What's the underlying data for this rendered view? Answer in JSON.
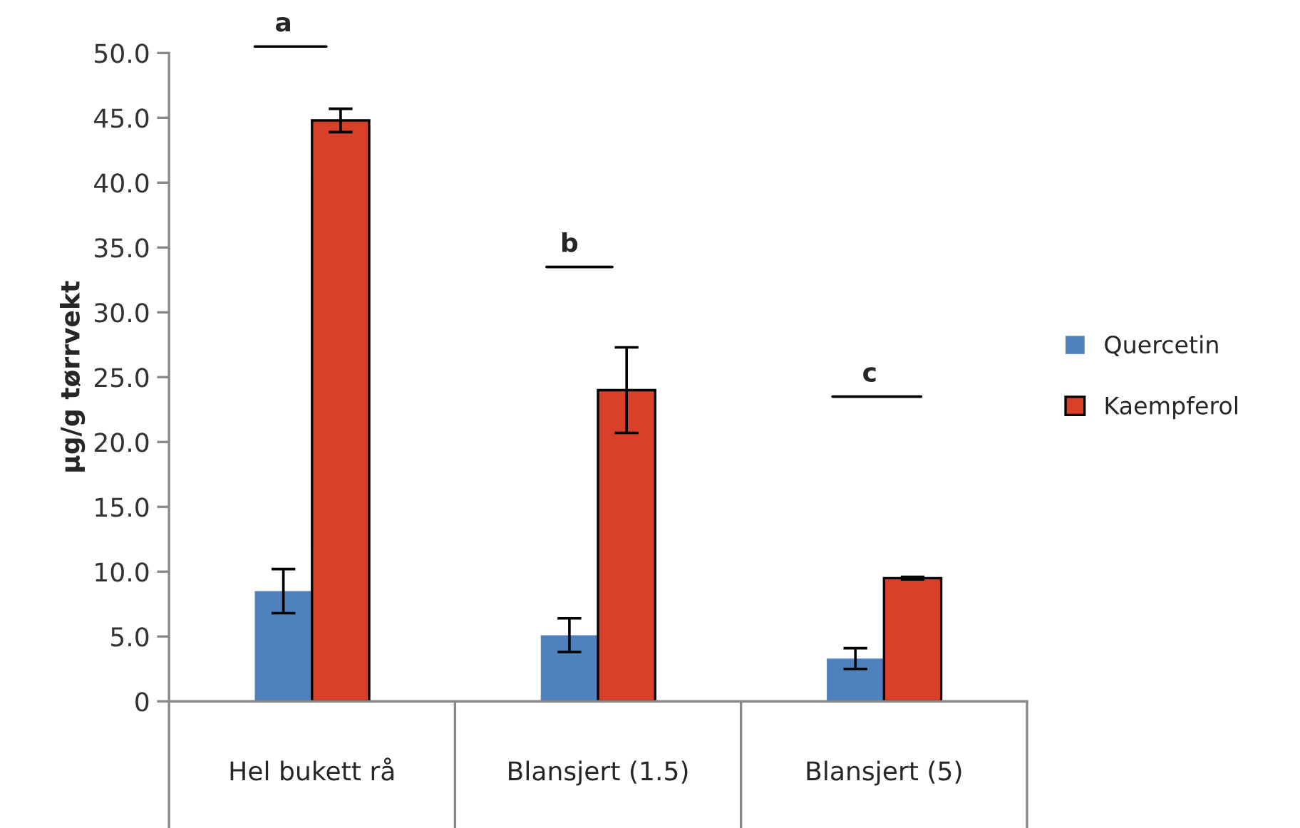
{
  "chart_data": {
    "type": "bar",
    "ylabel": "µg/g tørrvekt",
    "categories": [
      "Hel bukett rå",
      "Blansjert (1.5)",
      "Blansjert (5)"
    ],
    "series": [
      {
        "name": "Quercetin",
        "color": "#4f81bd",
        "values": [
          8.5,
          5.1,
          3.3
        ],
        "errors": [
          1.7,
          1.3,
          0.8
        ]
      },
      {
        "name": "Kaempferol",
        "color": "#d9402a",
        "values": [
          44.8,
          24.0,
          9.5
        ],
        "errors": [
          0.9,
          3.3,
          0.1
        ]
      }
    ],
    "ylim": [
      0,
      50
    ],
    "yticks": [
      0,
      {
        "value": 5,
        "label": "5.0"
      },
      {
        "value": 10,
        "label": "10.0"
      },
      {
        "value": 15,
        "label": "15.0"
      },
      {
        "value": 20,
        "label": "20.0"
      },
      {
        "value": 25,
        "label": "25.0"
      },
      {
        "value": 30,
        "label": "30.0"
      },
      {
        "value": 35,
        "label": "35.0"
      },
      {
        "value": 40,
        "label": "40.0"
      },
      {
        "value": 45,
        "label": "45.0"
      },
      {
        "value": 50,
        "label": "50.0"
      }
    ],
    "annotations": [
      "a",
      "b",
      "c"
    ],
    "grid": false,
    "legend": "right"
  }
}
